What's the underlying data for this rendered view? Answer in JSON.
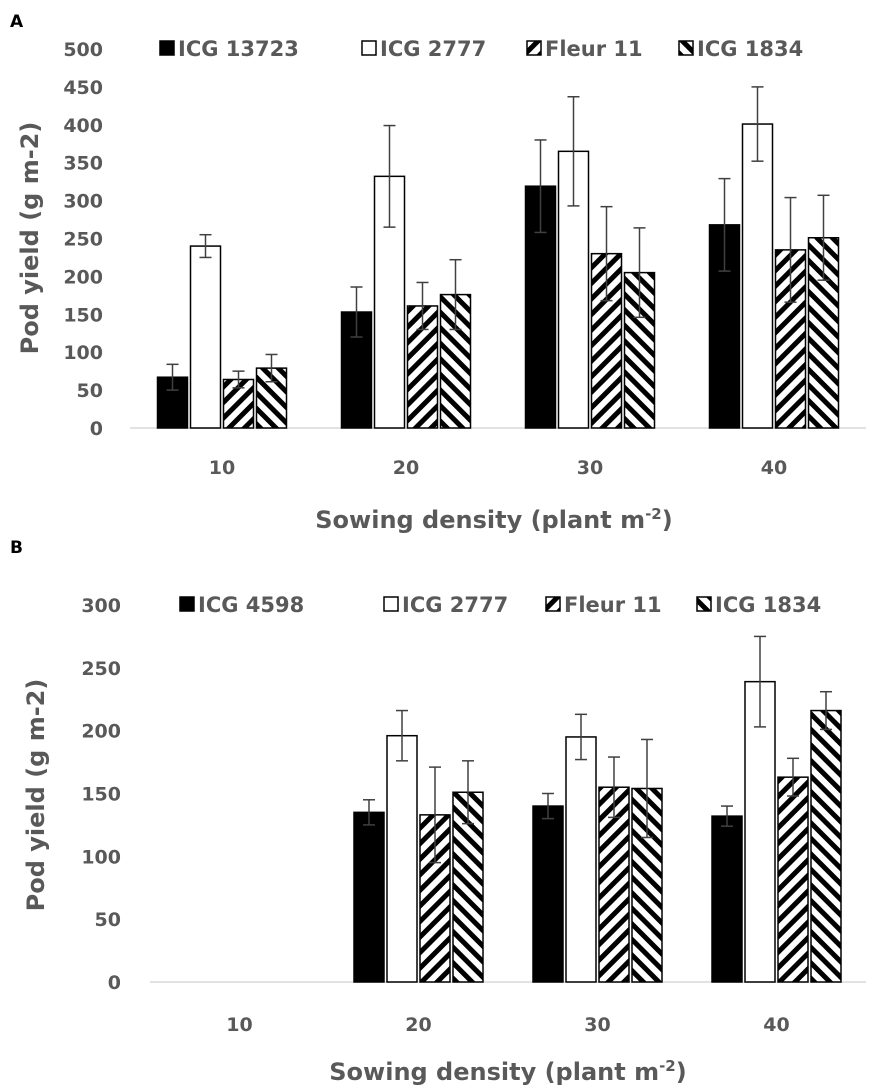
{
  "panels": [
    {
      "label": "A",
      "chart_data": {
        "type": "bar",
        "categories": [
          "10",
          "20",
          "30",
          "40"
        ],
        "xlabel": "Sowing density (plant m",
        "xlabel_sup": "-2",
        "xlabel_end": ")",
        "ylabel": "Pod yield (g m-2)",
        "ylim": [
          0,
          500
        ],
        "yticks": [
          "0",
          "50",
          "100",
          "150",
          "200",
          "250",
          "300",
          "350",
          "400",
          "450",
          "500"
        ],
        "legend_position": "top",
        "series": [
          {
            "name": "ICG 13723",
            "fill": "solid-black",
            "values": [
              67,
              153,
              319,
              268
            ],
            "errors": [
              17,
              33,
              61,
              61
            ]
          },
          {
            "name": "ICG 2777",
            "fill": "white",
            "values": [
              240,
              332,
              365,
              401
            ],
            "errors": [
              15,
              67,
              72,
              49
            ]
          },
          {
            "name": "Fleur 11",
            "fill": "hatch-forward",
            "values": [
              64,
              161,
              230,
              235
            ],
            "errors": [
              11,
              31,
              62,
              69
            ]
          },
          {
            "name": "ICG 1834",
            "fill": "hatch-back",
            "values": [
              79,
              176,
              205,
              251
            ],
            "errors": [
              18,
              46,
              59,
              56
            ]
          }
        ]
      }
    },
    {
      "label": "B",
      "chart_data": {
        "type": "bar",
        "categories": [
          "10",
          "20",
          "30",
          "40"
        ],
        "xlabel": "Sowing density (plant m",
        "xlabel_sup": "-2",
        "xlabel_end": ")",
        "ylabel": "Pod yield (g m-2)",
        "ylim": [
          0,
          300
        ],
        "yticks": [
          "0",
          "50",
          "100",
          "150",
          "200",
          "250",
          "300"
        ],
        "legend_position": "top",
        "series": [
          {
            "name": "ICG 4598",
            "fill": "solid-black",
            "values": [
              null,
              135,
              140,
              132
            ],
            "errors": [
              null,
              10,
              10,
              8
            ]
          },
          {
            "name": "ICG 2777",
            "fill": "white",
            "values": [
              null,
              196,
              195,
              239
            ],
            "errors": [
              null,
              20,
              18,
              36
            ]
          },
          {
            "name": "Fleur 11",
            "fill": "hatch-forward",
            "values": [
              null,
              133,
              155,
              163
            ],
            "errors": [
              null,
              38,
              24,
              15
            ]
          },
          {
            "name": "ICG 1834",
            "fill": "hatch-back",
            "values": [
              null,
              151,
              154,
              216
            ],
            "errors": [
              null,
              25,
              39,
              15
            ]
          }
        ]
      }
    }
  ],
  "colors": {
    "bar_fill": "#000000",
    "bar_outline": "#000000",
    "axis_text": "#595959",
    "axis_line": "#d9d9d9",
    "error_bar": "#404040"
  }
}
